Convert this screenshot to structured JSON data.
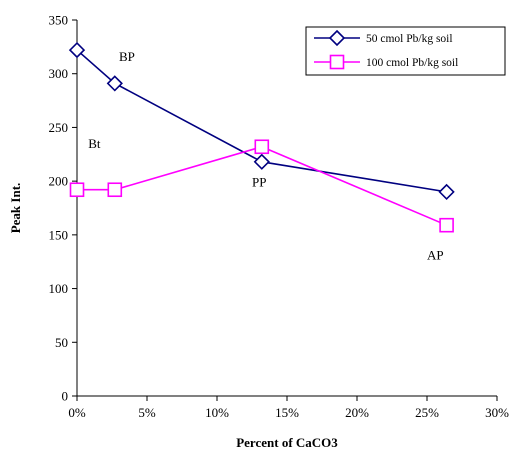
{
  "chart_data": {
    "type": "line",
    "title": "",
    "xlabel": "Percent of CaCO3",
    "ylabel": "Peak Int.",
    "xlim": [
      0,
      30
    ],
    "ylim": [
      0,
      350
    ],
    "x_ticks": [
      0,
      5,
      10,
      15,
      20,
      25,
      30
    ],
    "x_tick_labels": [
      "0%",
      "5%",
      "10%",
      "15%",
      "20%",
      "25%",
      "30%"
    ],
    "y_ticks": [
      0,
      50,
      100,
      150,
      200,
      250,
      300,
      350
    ],
    "y_tick_labels": [
      "0",
      "50",
      "100",
      "150",
      "200",
      "250",
      "300",
      "350"
    ],
    "grid": false,
    "legend_position": "top-right",
    "series": [
      {
        "name": "50 cmol Pb/kg soil",
        "color": "#000080",
        "marker": "diamond",
        "points": [
          [
            0,
            322
          ],
          [
            2.7,
            291
          ],
          [
            13.2,
            218
          ],
          [
            26.4,
            190
          ]
        ]
      },
      {
        "name": "100 cmol Pb/kg soil",
        "color": "#ff00ff",
        "marker": "square",
        "points": [
          [
            0,
            192
          ],
          [
            2.7,
            192
          ],
          [
            13.2,
            232
          ],
          [
            26.4,
            159
          ]
        ]
      }
    ],
    "annotations": [
      {
        "text": "BP",
        "x": 3.0,
        "y": 312
      },
      {
        "text": "Bt",
        "x": 0.8,
        "y": 231
      },
      {
        "text": "PP",
        "x": 12.5,
        "y": 195
      },
      {
        "text": "AP",
        "x": 25.0,
        "y": 127
      }
    ]
  }
}
